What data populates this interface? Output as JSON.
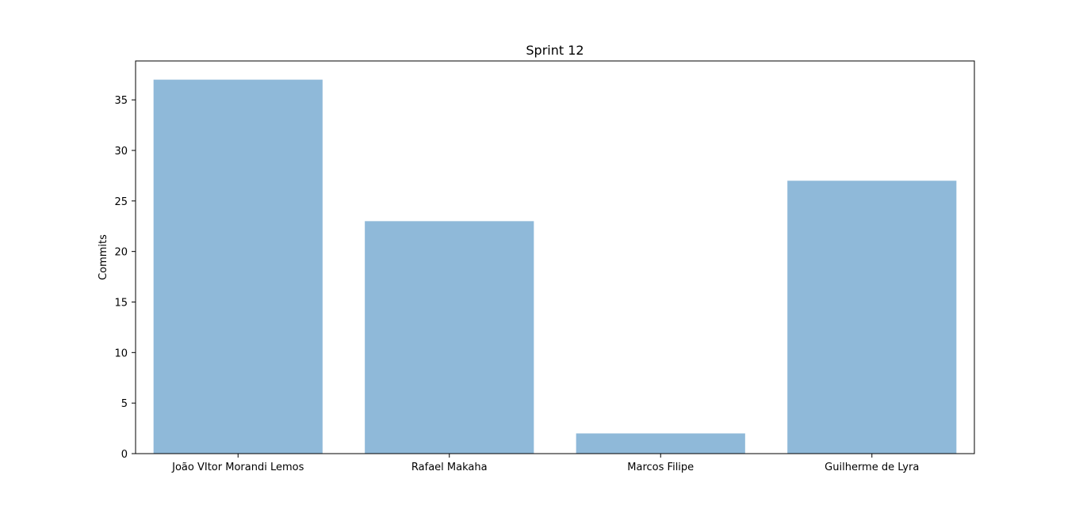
{
  "chart_data": {
    "type": "bar",
    "title": "Sprint 12",
    "xlabel": "",
    "ylabel": "Commits",
    "categories": [
      "João VItor Morandi Lemos",
      "Rafael Makaha",
      "Marcos Filipe",
      "Guilherme de Lyra"
    ],
    "values": [
      37,
      23,
      2,
      27
    ],
    "ylim": [
      0,
      38.85
    ],
    "yticks": [
      0,
      5,
      10,
      15,
      20,
      25,
      30,
      35
    ],
    "bar_color": "#8fb9d9",
    "grid": false,
    "legend": "none"
  }
}
